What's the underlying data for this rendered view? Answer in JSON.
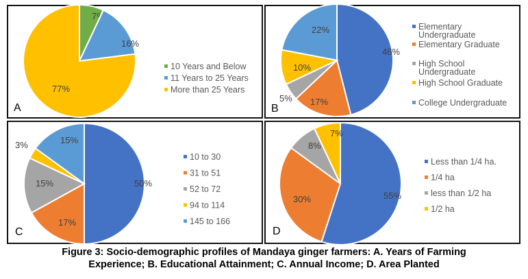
{
  "caption": {
    "line1": "Figure 3: Socio-demographic profiles of Mandaya ginger farmers: A. Years of Farming",
    "line2": "Experience; B. Educational Attainment; C. Annual Income; D. Area Planted"
  },
  "chart_data": [
    {
      "type": "pie",
      "panel": "A",
      "title": "Years of Farming Experience",
      "legend_position": "right",
      "slices": [
        {
          "name": "10 Years and Below",
          "value": 7,
          "label": "7%",
          "color": "#70AD47"
        },
        {
          "name": "11 Years to 25 Years",
          "value": 16,
          "label": "16%",
          "color": "#5B9BD5"
        },
        {
          "name": "More than 25 Years",
          "value": 77,
          "label": "77%",
          "color": "#FFC000"
        }
      ]
    },
    {
      "type": "pie",
      "panel": "B",
      "title": "Educational Attainment",
      "legend_position": "right",
      "slices": [
        {
          "name": "Elementary Undergraduate",
          "legend_lines": [
            "Elementary",
            "Undergraduate"
          ],
          "value": 46,
          "label": "46%",
          "color": "#4472C4"
        },
        {
          "name": "Elementary Graduate",
          "legend_lines": [
            "Elementary Graduate"
          ],
          "value": 17,
          "label": "17%",
          "color": "#ED7D31"
        },
        {
          "name": "High School Undergraduate",
          "legend_lines": [
            "High School",
            "Undergraduate"
          ],
          "value": 5,
          "label": "5%",
          "color": "#A5A5A5"
        },
        {
          "name": "High School Graduate",
          "legend_lines": [
            "High School Graduate"
          ],
          "value": 10,
          "label": "10%",
          "color": "#FFC000"
        },
        {
          "name": "College Undergraduate",
          "legend_lines": [
            "College Undergraduate"
          ],
          "value": 22,
          "label": "22%",
          "color": "#5B9BD5"
        }
      ]
    },
    {
      "type": "pie",
      "panel": "C",
      "title": "Annual Income",
      "legend_position": "right",
      "slices": [
        {
          "name": "10 to 30",
          "value": 50,
          "label": "50%",
          "color": "#4472C4"
        },
        {
          "name": "31 to 51",
          "value": 17,
          "label": "17%",
          "color": "#ED7D31"
        },
        {
          "name": "52 to 72",
          "value": 15,
          "label": "15%",
          "color": "#A5A5A5"
        },
        {
          "name": "94 to 114",
          "value": 3,
          "label": "3%",
          "color": "#FFC000"
        },
        {
          "name": "145 to 166",
          "value": 15,
          "label": "15%",
          "color": "#5B9BD5"
        }
      ]
    },
    {
      "type": "pie",
      "panel": "D",
      "title": "Area Planted",
      "legend_position": "right",
      "slices": [
        {
          "name": "Less than 1/4 ha.",
          "value": 55,
          "label": "55%",
          "color": "#4472C4"
        },
        {
          "name": "1/4 ha",
          "value": 30,
          "label": "30%",
          "color": "#ED7D31"
        },
        {
          "name": "less than 1/2 ha",
          "value": 8,
          "label": "8%",
          "color": "#A5A5A5"
        },
        {
          "name": "1/2 ha",
          "value": 7,
          "label": "7%",
          "color": "#FFC000"
        }
      ]
    }
  ]
}
